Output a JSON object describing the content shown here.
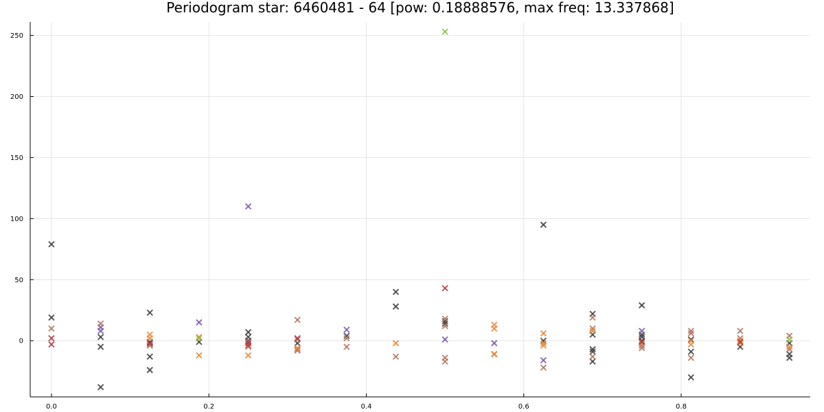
{
  "chart_data": {
    "type": "scatter",
    "title": "Periodogram star: 6460481 - 64 [pow: 0.18888576, max freq: 13.337868]",
    "xlabel": "",
    "ylabel": "",
    "xlim": [
      -0.027,
      0.964
    ],
    "ylim": [
      -46,
      261
    ],
    "x_ticks": [
      0.0,
      0.2,
      0.4,
      0.6,
      0.8
    ],
    "x_tick_labels": [
      "0.0",
      "0.2",
      "0.4",
      "0.6",
      "0.8"
    ],
    "y_ticks": [
      0,
      50,
      100,
      150,
      200,
      250
    ],
    "y_tick_labels": [
      "0",
      "50",
      "100",
      "150",
      "200",
      "250"
    ],
    "grid": true,
    "legend": "none",
    "marker": "x",
    "series": [
      {
        "color": "#404040",
        "points": [
          [
            0.0,
            79
          ],
          [
            0.0,
            19
          ],
          [
            0.0625,
            3
          ],
          [
            0.0625,
            -5
          ],
          [
            0.0625,
            -38
          ],
          [
            0.125,
            23
          ],
          [
            0.125,
            -1
          ],
          [
            0.125,
            -2
          ],
          [
            0.125,
            -13
          ],
          [
            0.125,
            -24
          ],
          [
            0.1875,
            -1
          ],
          [
            0.25,
            7
          ],
          [
            0.25,
            3
          ],
          [
            0.25,
            0
          ],
          [
            0.3125,
            -2
          ],
          [
            0.375,
            4
          ],
          [
            0.4375,
            40
          ],
          [
            0.4375,
            28
          ],
          [
            0.5,
            16
          ],
          [
            0.5,
            14
          ],
          [
            0.625,
            95
          ],
          [
            0.625,
            0
          ],
          [
            0.6875,
            22
          ],
          [
            0.6875,
            5
          ],
          [
            0.6875,
            -7
          ],
          [
            0.6875,
            -9
          ],
          [
            0.6875,
            -17
          ],
          [
            0.75,
            29
          ],
          [
            0.75,
            5
          ],
          [
            0.75,
            3
          ],
          [
            0.75,
            0
          ],
          [
            0.8125,
            1
          ],
          [
            0.8125,
            -9
          ],
          [
            0.8125,
            -30
          ],
          [
            0.875,
            -5
          ],
          [
            0.9375,
            -2
          ],
          [
            0.9375,
            -11
          ],
          [
            0.9375,
            -14
          ]
        ]
      },
      {
        "color": "#7b5aa6",
        "points": [
          [
            0.0625,
            11
          ],
          [
            0.0625,
            8
          ],
          [
            0.1875,
            15
          ],
          [
            0.25,
            110
          ],
          [
            0.375,
            9
          ],
          [
            0.5,
            1
          ],
          [
            0.5625,
            -2
          ],
          [
            0.625,
            -16
          ],
          [
            0.75,
            8
          ]
        ]
      },
      {
        "color": "#b07560",
        "points": [
          [
            0.0,
            10
          ],
          [
            0.0625,
            14
          ],
          [
            0.125,
            -3
          ],
          [
            0.125,
            -4
          ],
          [
            0.25,
            -1
          ],
          [
            0.3125,
            17
          ],
          [
            0.3125,
            1
          ],
          [
            0.3125,
            -7
          ],
          [
            0.3125,
            -8
          ],
          [
            0.375,
            2
          ],
          [
            0.375,
            -5
          ],
          [
            0.4375,
            -13
          ],
          [
            0.5,
            18
          ],
          [
            0.5,
            12
          ],
          [
            0.5,
            -14
          ],
          [
            0.5,
            -17
          ],
          [
            0.5625,
            -11
          ],
          [
            0.625,
            -22
          ],
          [
            0.6875,
            19
          ],
          [
            0.6875,
            10
          ],
          [
            0.6875,
            -13
          ],
          [
            0.75,
            -4
          ],
          [
            0.75,
            -6
          ],
          [
            0.8125,
            8
          ],
          [
            0.8125,
            6
          ],
          [
            0.8125,
            -14
          ],
          [
            0.875,
            8
          ],
          [
            0.875,
            2
          ],
          [
            0.9375,
            4
          ],
          [
            0.9375,
            -7
          ]
        ]
      },
      {
        "color": "#e8883a",
        "points": [
          [
            0.125,
            5
          ],
          [
            0.125,
            2
          ],
          [
            0.1875,
            3
          ],
          [
            0.1875,
            -12
          ],
          [
            0.25,
            -5
          ],
          [
            0.25,
            -12
          ],
          [
            0.3125,
            -6
          ],
          [
            0.4375,
            -2
          ],
          [
            0.5625,
            13
          ],
          [
            0.5625,
            10
          ],
          [
            0.5625,
            -11
          ],
          [
            0.625,
            6
          ],
          [
            0.625,
            -2
          ],
          [
            0.625,
            -4
          ],
          [
            0.6875,
            8
          ],
          [
            0.75,
            -2
          ],
          [
            0.8125,
            0
          ],
          [
            0.8125,
            -3
          ],
          [
            0.875,
            0
          ],
          [
            0.875,
            -2
          ],
          [
            0.9375,
            -5
          ]
        ]
      },
      {
        "color": "#b23a48",
        "points": [
          [
            0.0,
            2
          ],
          [
            0.0,
            -3
          ],
          [
            0.125,
            -2
          ],
          [
            0.25,
            -2
          ],
          [
            0.25,
            -4
          ],
          [
            0.3125,
            2
          ],
          [
            0.5,
            43
          ],
          [
            0.75,
            -1
          ],
          [
            0.875,
            -1
          ]
        ]
      },
      {
        "color": "#8fbc45",
        "points": [
          [
            0.1875,
            2
          ],
          [
            0.5,
            253
          ],
          [
            0.9375,
            1
          ]
        ]
      }
    ]
  }
}
